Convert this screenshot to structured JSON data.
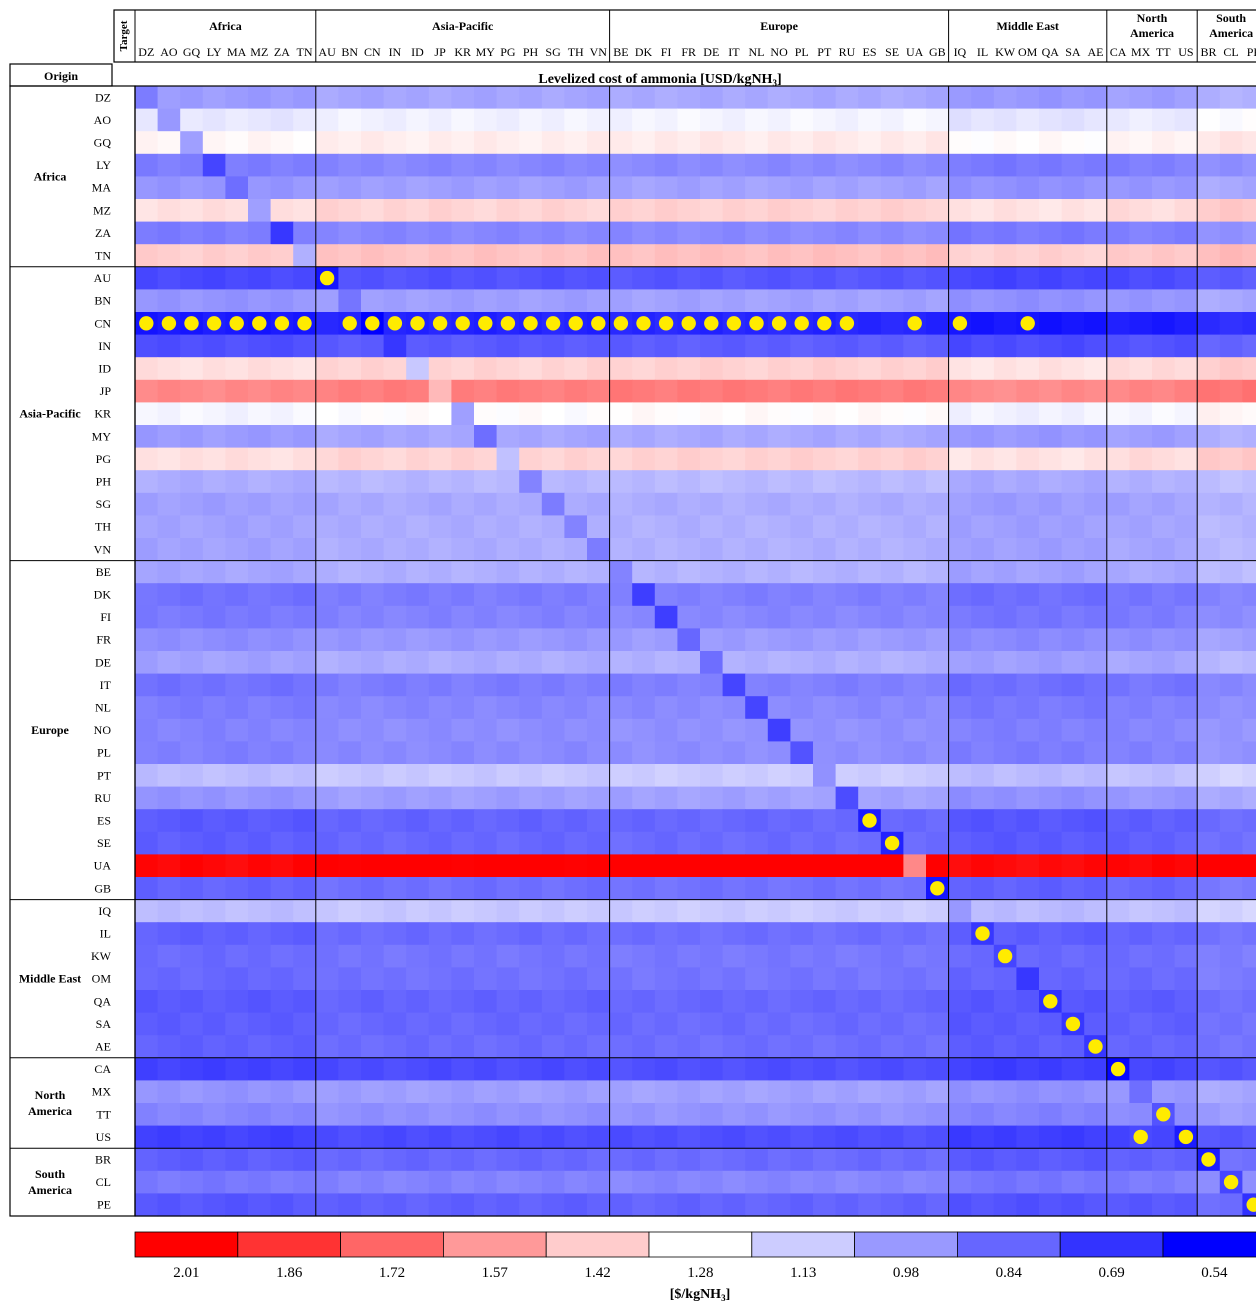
{
  "chart_data": {
    "type": "heatmap",
    "title": "Levelized cost of ammonia [USD/kgNH3]",
    "title_main": "Levelized cost of ammonia [USD/kgNH",
    "title_sub": "3",
    "title_end": "]",
    "row_axis_label": "Origin",
    "col_axis_label": "Target",
    "col_groups": [
      {
        "name": "Africa",
        "lines": [
          "Africa"
        ],
        "count": 8
      },
      {
        "name": "Asia-Pacific",
        "lines": [
          "Asia-Pacific"
        ],
        "count": 13
      },
      {
        "name": "Europe",
        "lines": [
          "Europe"
        ],
        "count": 15
      },
      {
        "name": "Middle East",
        "lines": [
          "Middle East"
        ],
        "count": 7
      },
      {
        "name": "North America",
        "lines": [
          "North",
          "America"
        ],
        "count": 4
      },
      {
        "name": "South America",
        "lines": [
          "South",
          "America"
        ],
        "count": 3
      }
    ],
    "col_labels": [
      "DZ",
      "AO",
      "GQ",
      "LY",
      "MA",
      "MZ",
      "ZA",
      "TN",
      "AU",
      "BN",
      "CN",
      "IN",
      "ID",
      "JP",
      "KR",
      "MY",
      "PG",
      "PH",
      "SG",
      "TH",
      "VN",
      "BE",
      "DK",
      "FI",
      "FR",
      "DE",
      "IT",
      "NL",
      "NO",
      "PL",
      "PT",
      "RU",
      "ES",
      "SE",
      "UA",
      "GB",
      "IQ",
      "IL",
      "KW",
      "OM",
      "QA",
      "SA",
      "AE",
      "CA",
      "MX",
      "TT",
      "US",
      "BR",
      "CL",
      "PE"
    ],
    "row_groups": [
      {
        "name": "Africa",
        "lines": [
          "Africa"
        ],
        "count": 8
      },
      {
        "name": "Asia-Pacific",
        "lines": [
          "Asia-Pacific"
        ],
        "count": 13
      },
      {
        "name": "Europe",
        "lines": [
          "Europe"
        ],
        "count": 15
      },
      {
        "name": "Middle East",
        "lines": [
          "Middle East"
        ],
        "count": 7
      },
      {
        "name": "North America",
        "lines": [
          "North",
          "America"
        ],
        "count": 4
      },
      {
        "name": "South America",
        "lines": [
          "South",
          "America"
        ],
        "count": 3
      }
    ],
    "row_labels": [
      "DZ",
      "AO",
      "GQ",
      "LY",
      "MA",
      "MZ",
      "ZA",
      "TN",
      "AU",
      "BN",
      "CN",
      "IN",
      "ID",
      "JP",
      "KR",
      "MY",
      "PG",
      "PH",
      "SG",
      "TH",
      "VN",
      "BE",
      "DK",
      "FI",
      "FR",
      "DE",
      "IT",
      "NL",
      "NO",
      "PL",
      "PT",
      "RU",
      "ES",
      "SE",
      "UA",
      "GB",
      "IQ",
      "IL",
      "KW",
      "OM",
      "QA",
      "SA",
      "AE",
      "CA",
      "MX",
      "TT",
      "US",
      "BR",
      "CL",
      "PE"
    ],
    "row_base_values": [
      1.02,
      1.24,
      1.33,
      0.93,
      1.0,
      1.4,
      0.93,
      1.45,
      0.78,
      1.0,
      0.64,
      0.8,
      1.4,
      1.65,
      1.28,
      1.02,
      1.4,
      1.07,
      1.03,
      1.04,
      1.04,
      1.05,
      0.9,
      0.92,
      0.98,
      1.04,
      0.9,
      0.93,
      0.95,
      0.94,
      1.12,
      1.0,
      0.83,
      0.84,
      2.02,
      0.86,
      1.12,
      0.85,
      0.88,
      0.87,
      0.83,
      0.84,
      0.85,
      0.76,
      1.0,
      0.96,
      0.76,
      0.84,
      0.92,
      0.82
    ],
    "diagonal_values": [
      0.9,
      0.98,
      1.0,
      0.74,
      0.86,
      1.0,
      0.7,
      1.05,
      0.6,
      0.88,
      0.52,
      0.7,
      1.12,
      1.48,
      1.0,
      0.86,
      1.1,
      0.92,
      0.9,
      0.92,
      0.9,
      0.92,
      0.72,
      0.72,
      0.84,
      0.86,
      0.74,
      0.74,
      0.72,
      0.78,
      0.96,
      0.76,
      0.62,
      0.64,
      1.62,
      0.6,
      0.98,
      0.7,
      0.74,
      0.7,
      0.68,
      0.7,
      0.7,
      0.56,
      0.86,
      0.78,
      0.62,
      0.62,
      0.74,
      0.68
    ],
    "markers": [
      [
        10,
        0
      ],
      [
        10,
        1
      ],
      [
        10,
        2
      ],
      [
        10,
        3
      ],
      [
        10,
        4
      ],
      [
        10,
        5
      ],
      [
        10,
        6
      ],
      [
        10,
        7
      ],
      [
        10,
        9
      ],
      [
        10,
        10
      ],
      [
        10,
        11
      ],
      [
        10,
        12
      ],
      [
        10,
        13
      ],
      [
        10,
        14
      ],
      [
        10,
        15
      ],
      [
        10,
        16
      ],
      [
        10,
        17
      ],
      [
        10,
        18
      ],
      [
        10,
        19
      ],
      [
        10,
        20
      ],
      [
        10,
        21
      ],
      [
        10,
        22
      ],
      [
        10,
        23
      ],
      [
        10,
        24
      ],
      [
        10,
        25
      ],
      [
        10,
        26
      ],
      [
        10,
        27
      ],
      [
        10,
        28
      ],
      [
        10,
        29
      ],
      [
        10,
        30
      ],
      [
        10,
        31
      ],
      [
        10,
        34
      ],
      [
        10,
        36
      ],
      [
        10,
        39
      ],
      [
        8,
        8
      ],
      [
        32,
        32
      ],
      [
        33,
        33
      ],
      [
        35,
        35
      ],
      [
        37,
        37
      ],
      [
        38,
        38
      ],
      [
        40,
        40
      ],
      [
        41,
        41
      ],
      [
        42,
        42
      ],
      [
        43,
        43
      ],
      [
        45,
        45
      ],
      [
        46,
        44
      ],
      [
        46,
        46
      ],
      [
        47,
        47
      ],
      [
        48,
        48
      ],
      [
        49,
        49
      ]
    ],
    "marker_color": "#ffeb00",
    "colorbar": {
      "ticks": [
        "2.01",
        "1.86",
        "1.72",
        "1.57",
        "1.42",
        "1.28",
        "1.13",
        "0.98",
        "0.84",
        "0.69",
        "0.54"
      ],
      "colors": [
        "#ff0000",
        "#ff3333",
        "#ff6666",
        "#ff9999",
        "#ffcccc",
        "#ffffff",
        "#ccccff",
        "#9999ff",
        "#6666ff",
        "#3333ff",
        "#0000ff"
      ],
      "label": "[$/kgNH3]",
      "label_main": "[$/kgNH",
      "label_sub": "3",
      "label_end": "]"
    },
    "color_scale": {
      "min": 0.54,
      "mid": 1.28,
      "max": 2.01,
      "low_color": "#0000ff",
      "mid_color": "#ffffff",
      "high_color": "#ff0000"
    }
  }
}
